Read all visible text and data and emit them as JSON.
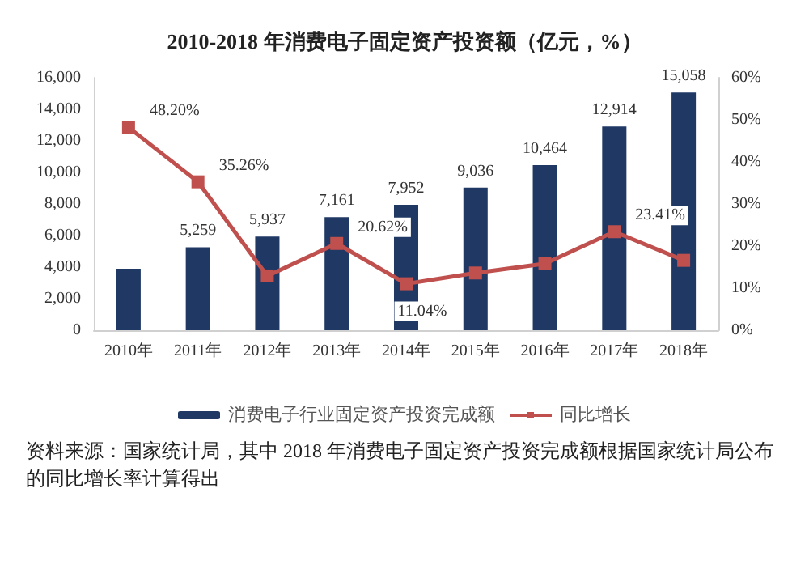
{
  "chart_data": {
    "type": "bar",
    "title": "2010-2018 年消费电子固定资产投资额（亿元，%）",
    "categories": [
      "2010年",
      "2011年",
      "2012年",
      "2013年",
      "2014年",
      "2015年",
      "2016年",
      "2017年",
      "2018年"
    ],
    "series": [
      {
        "name": "消费电子行业固定资产投资完成额",
        "color": "#1f3864",
        "values": [
          3900,
          5259,
          5937,
          7161,
          7952,
          9036,
          10464,
          12914,
          15058
        ],
        "value_labels": [
          null,
          "5,259",
          "5,937",
          "7,161",
          "7,952",
          "9,036",
          "10,464",
          "12,914",
          "15,058"
        ]
      },
      {
        "name": "同比增长",
        "type": "line",
        "axis": "y2",
        "color": "#c0504d",
        "marker": "square",
        "values": [
          48.2,
          35.26,
          12.9,
          20.62,
          11.04,
          13.6,
          15.8,
          23.41,
          16.6
        ],
        "value_labels": [
          "48.20%",
          "35.26%",
          null,
          "20.62%",
          "11.04%",
          null,
          null,
          "23.41%",
          null
        ]
      }
    ],
    "ylim": [
      0,
      16000
    ],
    "yticks": [
      {
        "value": 0,
        "label": "0"
      },
      {
        "value": 2000,
        "label": "2,000"
      },
      {
        "value": 4000,
        "label": "4,000"
      },
      {
        "value": 6000,
        "label": "6,000"
      },
      {
        "value": 8000,
        "label": "8,000"
      },
      {
        "value": 10000,
        "label": "10,000"
      },
      {
        "value": 12000,
        "label": "12,000"
      },
      {
        "value": 14000,
        "label": "14,000"
      },
      {
        "value": 16000,
        "label": "16,000"
      }
    ],
    "y2lim": [
      0,
      60
    ],
    "y2ticks": [
      {
        "value": 0,
        "label": "0%"
      },
      {
        "value": 10,
        "label": "10%"
      },
      {
        "value": 20,
        "label": "20%"
      },
      {
        "value": 30,
        "label": "30%"
      },
      {
        "value": 40,
        "label": "40%"
      },
      {
        "value": 50,
        "label": "50%"
      },
      {
        "value": 60,
        "label": "60%"
      }
    ],
    "grid": false,
    "legend": "bottom",
    "annotations": [
      "资料来源：国家统计局，其中 2018 年消费电子固定资产投资完成额根据国家统计局公布的同比增长率计算得出"
    ]
  }
}
